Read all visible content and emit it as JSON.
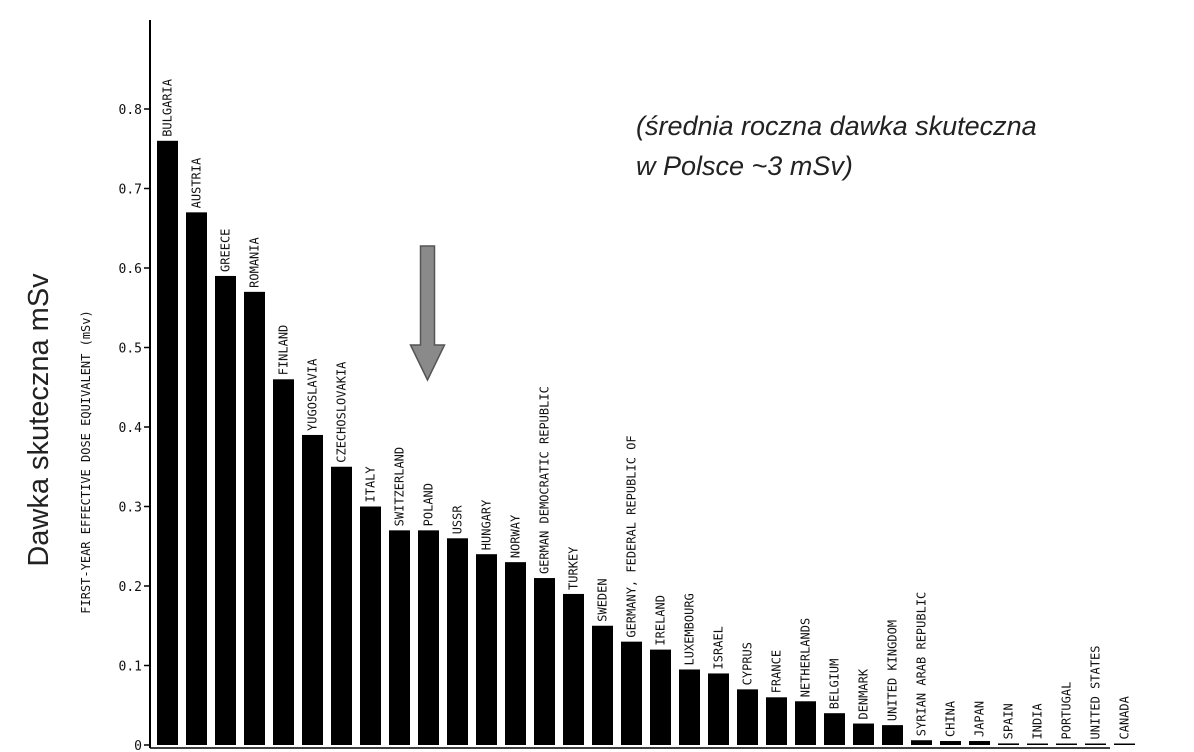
{
  "chart_data": {
    "type": "bar",
    "outer_ylabel": "Dawka skuteczna mSv",
    "ylabel": "FIRST-YEAR EFFECTIVE DOSE EQUIVALENT (mSv)",
    "annotation": {
      "line1": "(średnia roczna dawka skuteczna",
      "line2": "w Polsce ~3 mSv)"
    },
    "highlight": "POLAND",
    "arrow_color": "#8a8a8a",
    "bar_color": "#000000",
    "ylim": [
      0,
      0.85
    ],
    "yticks": [
      {
        "value": 0,
        "label": "0"
      },
      {
        "value": 0.1,
        "label": "0.1"
      },
      {
        "value": 0.2,
        "label": "0.2"
      },
      {
        "value": 0.3,
        "label": "0.3"
      },
      {
        "value": 0.4,
        "label": "0.4"
      },
      {
        "value": 0.5,
        "label": "0.5"
      },
      {
        "value": 0.6,
        "label": "0.6"
      },
      {
        "value": 0.7,
        "label": "0.7"
      },
      {
        "value": 0.8,
        "label": "0.8"
      }
    ],
    "categories": [
      "BULGARIA",
      "AUSTRIA",
      "GREECE",
      "ROMANIA",
      "FINLAND",
      "YUGOSLAVIA",
      "CZECHOSLOVAKIA",
      "ITALY",
      "SWITZERLAND",
      "POLAND",
      "USSR",
      "HUNGARY",
      "NORWAY",
      "GERMAN DEMOCRATIC REPUBLIC",
      "TURKEY",
      "SWEDEN",
      "GERMANY, FEDERAL REPUBLIC OF",
      "IRELAND",
      "LUXEMBOURG",
      "ISRAEL",
      "CYPRUS",
      "FRANCE",
      "NETHERLANDS",
      "BELGIUM",
      "DENMARK",
      "UNITED KINGDOM",
      "SYRIAN ARAB REPUBLIC",
      "CHINA",
      "JAPAN",
      "SPAIN",
      "INDIA",
      "PORTUGAL",
      "UNITED STATES",
      "CANADA"
    ],
    "values": [
      0.76,
      0.67,
      0.59,
      0.57,
      0.46,
      0.39,
      0.35,
      0.3,
      0.27,
      0.27,
      0.26,
      0.24,
      0.23,
      0.21,
      0.19,
      0.15,
      0.13,
      0.12,
      0.095,
      0.09,
      0.07,
      0.06,
      0.055,
      0.04,
      0.027,
      0.025,
      0.006,
      0.005,
      0.005,
      0.002,
      0.001,
      0.001,
      0.001,
      0.001
    ]
  }
}
